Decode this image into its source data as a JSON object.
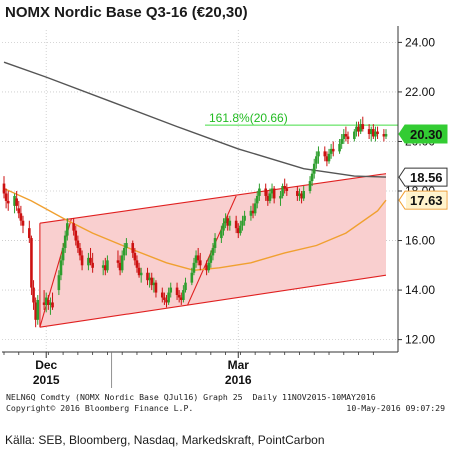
{
  "title": "NOMX Nordic Base Q3-16 (€20,30)",
  "footer": {
    "line1": "NELN6Q Comdty (NOMX Nordic Base QJul16) Graph 25  Daily 11NOV2015-10MAY2016",
    "line2_left": "Copyright© 2016 Bloomberg Finance L.P.",
    "line2_right": "10-May-2016 09:07:29"
  },
  "source": "Källa: SEB, Bloomberg, Nasdaq, Markedskraft, PointCarbon",
  "colors": {
    "up_candle": "#2e9e2e",
    "down_candle": "#cc1111",
    "channel": "#e02020",
    "channel_fill": "#f9cfcf",
    "ma_short": "#f0a030",
    "ma_long": "#555555",
    "fib_line": "#44dd44",
    "price_badge": "#33cc33"
  },
  "chart_data": {
    "type": "candlestick",
    "title": "NOMX Nordic Base Q3-16 (€20,30)",
    "x_range": [
      "2015-11-11",
      "2016-05-10"
    ],
    "y_range": [
      11.5,
      24.5
    ],
    "y_ticks": [
      "12.00",
      "14.00",
      "16.00",
      "18.00",
      "20.00",
      "22.00",
      "24.00"
    ],
    "x_tick_labels": [
      {
        "label": "Dec",
        "sub": "2015",
        "date": "2015-12-01"
      },
      {
        "label": "Mar",
        "sub": "2016",
        "date": "2016-03-01"
      }
    ],
    "value_labels": [
      {
        "name": "last",
        "value": "20.30",
        "y": 20.3,
        "style": "badge"
      },
      {
        "name": "ma_long_last",
        "value": "18.56",
        "y": 18.56,
        "style": "box-dark"
      },
      {
        "name": "ma_short_last",
        "value": "17.63",
        "y": 17.63,
        "style": "box-orange"
      }
    ],
    "fibonacci": {
      "label": "161.8%(20.66)",
      "value": 20.66
    },
    "channel": {
      "lower": [
        {
          "x": "2015-11-28",
          "y": 12.5
        },
        {
          "x": "2016-05-10",
          "y": 14.6
        }
      ],
      "upper": [
        {
          "x": "2015-11-28",
          "y": 16.7
        },
        {
          "x": "2016-05-10",
          "y": 18.7
        }
      ]
    },
    "trend_lines": [
      [
        {
          "x": "2015-11-28",
          "y": 12.5
        },
        {
          "x": "2015-12-13",
          "y": 16.9
        }
      ],
      [
        {
          "x": "2016-02-06",
          "y": 13.4
        },
        {
          "x": "2016-02-29",
          "y": 17.8
        }
      ]
    ],
    "ma_short": {
      "x": [
        "2015-11-11",
        "2015-11-24",
        "2015-12-09",
        "2015-12-23",
        "2016-01-09",
        "2016-01-27",
        "2016-02-09",
        "2016-02-21",
        "2016-03-07",
        "2016-03-23",
        "2016-04-07",
        "2016-04-21",
        "2016-05-06",
        "2016-05-10"
      ],
      "y": [
        18.1,
        17.6,
        16.9,
        16.3,
        15.7,
        15.1,
        14.8,
        14.9,
        15.1,
        15.5,
        15.8,
        16.3,
        17.2,
        17.63
      ]
    },
    "ma_long": {
      "x": [
        "2015-11-11",
        "2015-12-01",
        "2016-01-01",
        "2016-02-01",
        "2016-03-01",
        "2016-04-01",
        "2016-04-25",
        "2016-05-10"
      ],
      "y": [
        23.2,
        22.6,
        21.6,
        20.6,
        19.7,
        18.9,
        18.6,
        18.56
      ]
    },
    "candles": [
      {
        "d": "2015-11-11",
        "o": 18.3,
        "h": 18.6,
        "l": 17.7,
        "c": 17.9
      },
      {
        "d": "2015-11-12",
        "o": 17.9,
        "h": 18.1,
        "l": 17.3,
        "c": 17.6
      },
      {
        "d": "2015-11-13",
        "o": 17.6,
        "h": 18.0,
        "l": 17.2,
        "c": 17.5
      },
      {
        "d": "2015-11-16",
        "o": 17.4,
        "h": 17.9,
        "l": 17.1,
        "c": 17.8
      },
      {
        "d": "2015-11-17",
        "o": 17.7,
        "h": 18.0,
        "l": 17.2,
        "c": 17.4
      },
      {
        "d": "2015-11-18",
        "o": 17.3,
        "h": 17.6,
        "l": 16.9,
        "c": 17.1
      },
      {
        "d": "2015-11-19",
        "o": 17.1,
        "h": 17.4,
        "l": 16.6,
        "c": 16.8
      },
      {
        "d": "2015-11-20",
        "o": 16.8,
        "h": 17.0,
        "l": 16.3,
        "c": 16.6
      },
      {
        "d": "2015-11-23",
        "o": 16.5,
        "h": 16.8,
        "l": 15.9,
        "c": 16.1
      },
      {
        "d": "2015-11-24",
        "o": 16.1,
        "h": 16.2,
        "l": 13.8,
        "c": 14.1
      },
      {
        "d": "2015-11-25",
        "o": 14.1,
        "h": 14.4,
        "l": 13.2,
        "c": 13.5
      },
      {
        "d": "2015-11-26",
        "o": 13.5,
        "h": 13.7,
        "l": 12.5,
        "c": 12.8
      },
      {
        "d": "2015-11-27",
        "o": 12.8,
        "h": 13.8,
        "l": 12.6,
        "c": 13.6
      },
      {
        "d": "2015-11-30",
        "o": 13.5,
        "h": 14.0,
        "l": 13.2,
        "c": 13.4
      },
      {
        "d": "2015-12-01",
        "o": 13.4,
        "h": 13.9,
        "l": 13.1,
        "c": 13.7
      },
      {
        "d": "2015-12-02",
        "o": 13.6,
        "h": 13.8,
        "l": 13.2,
        "c": 13.4
      },
      {
        "d": "2015-12-03",
        "o": 13.4,
        "h": 13.7,
        "l": 13.0,
        "c": 13.5
      },
      {
        "d": "2015-12-04",
        "o": 13.5,
        "h": 13.9,
        "l": 13.2,
        "c": 13.3
      },
      {
        "d": "2015-12-07",
        "o": 14.0,
        "h": 14.8,
        "l": 13.8,
        "c": 14.6
      },
      {
        "d": "2015-12-08",
        "o": 14.6,
        "h": 15.4,
        "l": 14.4,
        "c": 15.2
      },
      {
        "d": "2015-12-09",
        "o": 15.2,
        "h": 15.9,
        "l": 15.0,
        "c": 15.7
      },
      {
        "d": "2015-12-10",
        "o": 15.7,
        "h": 16.4,
        "l": 15.5,
        "c": 16.2
      },
      {
        "d": "2015-12-11",
        "o": 16.2,
        "h": 16.9,
        "l": 16.0,
        "c": 16.7
      },
      {
        "d": "2015-12-14",
        "o": 16.7,
        "h": 16.9,
        "l": 16.2,
        "c": 16.4
      },
      {
        "d": "2015-12-15",
        "o": 16.4,
        "h": 16.6,
        "l": 15.8,
        "c": 16.0
      },
      {
        "d": "2015-12-16",
        "o": 16.0,
        "h": 16.2,
        "l": 15.5,
        "c": 15.7
      },
      {
        "d": "2015-12-17",
        "o": 15.7,
        "h": 15.9,
        "l": 15.2,
        "c": 15.4
      },
      {
        "d": "2015-12-18",
        "o": 15.4,
        "h": 15.6,
        "l": 14.8,
        "c": 15.0
      },
      {
        "d": "2015-12-21",
        "o": 15.0,
        "h": 15.5,
        "l": 14.8,
        "c": 15.3
      },
      {
        "d": "2015-12-22",
        "o": 15.3,
        "h": 15.7,
        "l": 15.0,
        "c": 15.1
      },
      {
        "d": "2015-12-23",
        "o": 15.1,
        "h": 15.5,
        "l": 14.7,
        "c": 14.9
      },
      {
        "d": "2015-12-28",
        "o": 14.9,
        "h": 15.2,
        "l": 14.6,
        "c": 15.0
      },
      {
        "d": "2015-12-29",
        "o": 15.0,
        "h": 15.3,
        "l": 14.6,
        "c": 14.8
      },
      {
        "d": "2015-12-30",
        "o": 14.8,
        "h": 15.4,
        "l": 14.7,
        "c": 15.2
      },
      {
        "d": "2016-01-04",
        "o": 15.2,
        "h": 15.6,
        "l": 14.9,
        "c": 15.1
      },
      {
        "d": "2016-01-05",
        "o": 15.1,
        "h": 15.4,
        "l": 14.6,
        "c": 14.8
      },
      {
        "d": "2016-01-06",
        "o": 14.8,
        "h": 15.6,
        "l": 14.7,
        "c": 15.4
      },
      {
        "d": "2016-01-07",
        "o": 15.4,
        "h": 15.9,
        "l": 15.2,
        "c": 15.7
      },
      {
        "d": "2016-01-08",
        "o": 15.7,
        "h": 16.1,
        "l": 15.4,
        "c": 15.9
      },
      {
        "d": "2016-01-11",
        "o": 15.9,
        "h": 16.0,
        "l": 15.3,
        "c": 15.5
      },
      {
        "d": "2016-01-12",
        "o": 15.5,
        "h": 15.7,
        "l": 15.0,
        "c": 15.2
      },
      {
        "d": "2016-01-13",
        "o": 15.2,
        "h": 15.4,
        "l": 14.7,
        "c": 14.9
      },
      {
        "d": "2016-01-14",
        "o": 14.9,
        "h": 15.1,
        "l": 14.5,
        "c": 14.6
      },
      {
        "d": "2016-01-15",
        "o": 14.6,
        "h": 14.9,
        "l": 14.3,
        "c": 14.7
      },
      {
        "d": "2016-01-18",
        "o": 14.7,
        "h": 14.9,
        "l": 14.2,
        "c": 14.4
      },
      {
        "d": "2016-01-19",
        "o": 14.4,
        "h": 14.7,
        "l": 14.1,
        "c": 14.5
      },
      {
        "d": "2016-01-20",
        "o": 14.5,
        "h": 14.7,
        "l": 14.0,
        "c": 14.2
      },
      {
        "d": "2016-01-21",
        "o": 14.2,
        "h": 14.5,
        "l": 13.9,
        "c": 14.3
      },
      {
        "d": "2016-01-22",
        "o": 14.3,
        "h": 14.4,
        "l": 13.7,
        "c": 13.9
      },
      {
        "d": "2016-01-25",
        "o": 13.9,
        "h": 14.1,
        "l": 13.5,
        "c": 13.7
      },
      {
        "d": "2016-01-26",
        "o": 13.7,
        "h": 13.9,
        "l": 13.4,
        "c": 13.6
      },
      {
        "d": "2016-01-27",
        "o": 13.6,
        "h": 13.8,
        "l": 13.3,
        "c": 13.5
      },
      {
        "d": "2016-01-28",
        "o": 13.5,
        "h": 14.1,
        "l": 13.4,
        "c": 13.9
      },
      {
        "d": "2016-01-29",
        "o": 13.9,
        "h": 14.3,
        "l": 13.7,
        "c": 14.1
      },
      {
        "d": "2016-02-01",
        "o": 14.1,
        "h": 14.3,
        "l": 13.6,
        "c": 13.8
      },
      {
        "d": "2016-02-02",
        "o": 13.8,
        "h": 14.0,
        "l": 13.5,
        "c": 13.7
      },
      {
        "d": "2016-02-03",
        "o": 13.7,
        "h": 13.9,
        "l": 13.4,
        "c": 13.6
      },
      {
        "d": "2016-02-04",
        "o": 13.6,
        "h": 14.2,
        "l": 13.5,
        "c": 14.0
      },
      {
        "d": "2016-02-05",
        "o": 14.0,
        "h": 14.5,
        "l": 13.9,
        "c": 14.3
      },
      {
        "d": "2016-02-08",
        "o": 14.3,
        "h": 14.9,
        "l": 14.2,
        "c": 14.7
      },
      {
        "d": "2016-02-09",
        "o": 14.7,
        "h": 15.3,
        "l": 14.6,
        "c": 15.1
      },
      {
        "d": "2016-02-10",
        "o": 15.1,
        "h": 15.6,
        "l": 14.9,
        "c": 15.4
      },
      {
        "d": "2016-02-11",
        "o": 15.4,
        "h": 15.7,
        "l": 15.0,
        "c": 15.2
      },
      {
        "d": "2016-02-12",
        "o": 15.2,
        "h": 15.5,
        "l": 14.8,
        "c": 15.0
      },
      {
        "d": "2016-02-15",
        "o": 15.0,
        "h": 15.2,
        "l": 14.6,
        "c": 14.8
      },
      {
        "d": "2016-02-16",
        "o": 14.8,
        "h": 15.3,
        "l": 14.7,
        "c": 15.1
      },
      {
        "d": "2016-02-17",
        "o": 15.1,
        "h": 15.6,
        "l": 14.9,
        "c": 15.4
      },
      {
        "d": "2016-02-18",
        "o": 15.4,
        "h": 15.9,
        "l": 15.2,
        "c": 15.7
      },
      {
        "d": "2016-02-19",
        "o": 15.7,
        "h": 16.3,
        "l": 15.5,
        "c": 16.1
      },
      {
        "d": "2016-02-22",
        "o": 16.1,
        "h": 16.6,
        "l": 15.9,
        "c": 16.4
      },
      {
        "d": "2016-02-23",
        "o": 16.4,
        "h": 16.9,
        "l": 16.2,
        "c": 16.7
      },
      {
        "d": "2016-02-24",
        "o": 16.7,
        "h": 17.1,
        "l": 16.5,
        "c": 16.9
      },
      {
        "d": "2016-02-25",
        "o": 16.9,
        "h": 17.0,
        "l": 16.4,
        "c": 16.6
      },
      {
        "d": "2016-02-26",
        "o": 16.6,
        "h": 17.0,
        "l": 16.4,
        "c": 16.8
      },
      {
        "d": "2016-02-29",
        "o": 16.8,
        "h": 17.0,
        "l": 16.3,
        "c": 16.5
      },
      {
        "d": "2016-03-01",
        "o": 16.5,
        "h": 16.7,
        "l": 16.1,
        "c": 16.3
      },
      {
        "d": "2016-03-02",
        "o": 16.3,
        "h": 16.8,
        "l": 16.2,
        "c": 16.6
      },
      {
        "d": "2016-03-03",
        "o": 16.6,
        "h": 17.0,
        "l": 16.4,
        "c": 16.8
      },
      {
        "d": "2016-03-04",
        "o": 16.8,
        "h": 17.2,
        "l": 16.6,
        "c": 17.0
      },
      {
        "d": "2016-03-07",
        "o": 17.0,
        "h": 17.4,
        "l": 16.8,
        "c": 17.2
      },
      {
        "d": "2016-03-08",
        "o": 17.2,
        "h": 17.5,
        "l": 16.9,
        "c": 17.1
      },
      {
        "d": "2016-03-09",
        "o": 17.1,
        "h": 17.7,
        "l": 17.0,
        "c": 17.5
      },
      {
        "d": "2016-03-10",
        "o": 17.5,
        "h": 18.0,
        "l": 17.3,
        "c": 17.8
      },
      {
        "d": "2016-03-11",
        "o": 17.8,
        "h": 18.3,
        "l": 17.6,
        "c": 18.1
      },
      {
        "d": "2016-03-14",
        "o": 18.1,
        "h": 18.3,
        "l": 17.6,
        "c": 17.8
      },
      {
        "d": "2016-03-15",
        "o": 17.8,
        "h": 18.0,
        "l": 17.4,
        "c": 17.6
      },
      {
        "d": "2016-03-16",
        "o": 17.6,
        "h": 18.1,
        "l": 17.5,
        "c": 17.9
      },
      {
        "d": "2016-03-17",
        "o": 17.9,
        "h": 18.3,
        "l": 17.7,
        "c": 18.1
      },
      {
        "d": "2016-03-18",
        "o": 18.1,
        "h": 18.2,
        "l": 17.5,
        "c": 17.7
      },
      {
        "d": "2016-03-21",
        "o": 17.7,
        "h": 18.0,
        "l": 17.4,
        "c": 17.8
      },
      {
        "d": "2016-03-22",
        "o": 17.8,
        "h": 18.3,
        "l": 17.7,
        "c": 18.2
      },
      {
        "d": "2016-03-23",
        "o": 18.2,
        "h": 18.5,
        "l": 17.9,
        "c": 18.1
      },
      {
        "d": "2016-03-24",
        "o": 18.1,
        "h": 18.3,
        "l": 17.8,
        "c": 18.0
      },
      {
        "d": "2016-03-29",
        "o": 18.0,
        "h": 18.2,
        "l": 17.6,
        "c": 17.8
      },
      {
        "d": "2016-03-30",
        "o": 17.8,
        "h": 18.1,
        "l": 17.6,
        "c": 17.9
      },
      {
        "d": "2016-03-31",
        "o": 17.9,
        "h": 18.0,
        "l": 17.5,
        "c": 17.7
      },
      {
        "d": "2016-04-01",
        "o": 17.7,
        "h": 18.2,
        "l": 17.6,
        "c": 18.0
      },
      {
        "d": "2016-04-04",
        "o": 18.0,
        "h": 18.6,
        "l": 17.9,
        "c": 18.4
      },
      {
        "d": "2016-04-05",
        "o": 18.4,
        "h": 18.9,
        "l": 18.2,
        "c": 18.7
      },
      {
        "d": "2016-04-06",
        "o": 18.7,
        "h": 19.3,
        "l": 18.5,
        "c": 19.1
      },
      {
        "d": "2016-04-07",
        "o": 19.1,
        "h": 19.6,
        "l": 18.9,
        "c": 19.4
      },
      {
        "d": "2016-04-08",
        "o": 19.4,
        "h": 19.8,
        "l": 19.1,
        "c": 19.6
      },
      {
        "d": "2016-04-11",
        "o": 19.6,
        "h": 19.8,
        "l": 19.2,
        "c": 19.4
      },
      {
        "d": "2016-04-12",
        "o": 19.4,
        "h": 19.6,
        "l": 19.0,
        "c": 19.2
      },
      {
        "d": "2016-04-13",
        "o": 19.2,
        "h": 19.7,
        "l": 19.1,
        "c": 19.5
      },
      {
        "d": "2016-04-14",
        "o": 19.5,
        "h": 19.9,
        "l": 19.3,
        "c": 19.7
      },
      {
        "d": "2016-04-15",
        "o": 19.7,
        "h": 20.0,
        "l": 19.4,
        "c": 19.6
      },
      {
        "d": "2016-04-18",
        "o": 19.6,
        "h": 20.1,
        "l": 19.5,
        "c": 19.9
      },
      {
        "d": "2016-04-19",
        "o": 19.9,
        "h": 20.3,
        "l": 19.7,
        "c": 20.1
      },
      {
        "d": "2016-04-20",
        "o": 20.1,
        "h": 20.5,
        "l": 19.9,
        "c": 20.3
      },
      {
        "d": "2016-04-21",
        "o": 20.3,
        "h": 20.6,
        "l": 20.0,
        "c": 20.2
      },
      {
        "d": "2016-04-22",
        "o": 20.2,
        "h": 20.4,
        "l": 19.9,
        "c": 20.1
      },
      {
        "d": "2016-04-25",
        "o": 20.1,
        "h": 20.5,
        "l": 20.0,
        "c": 20.4
      },
      {
        "d": "2016-04-26",
        "o": 20.4,
        "h": 20.8,
        "l": 20.2,
        "c": 20.6
      },
      {
        "d": "2016-04-27",
        "o": 20.6,
        "h": 20.8,
        "l": 20.2,
        "c": 20.4
      },
      {
        "d": "2016-04-28",
        "o": 20.4,
        "h": 20.9,
        "l": 20.3,
        "c": 20.7
      },
      {
        "d": "2016-04-29",
        "o": 20.7,
        "h": 21.0,
        "l": 20.4,
        "c": 20.5
      },
      {
        "d": "2016-05-02",
        "o": 20.5,
        "h": 20.7,
        "l": 20.1,
        "c": 20.3
      },
      {
        "d": "2016-05-03",
        "o": 20.3,
        "h": 20.6,
        "l": 20.0,
        "c": 20.5
      },
      {
        "d": "2016-05-04",
        "o": 20.5,
        "h": 20.7,
        "l": 20.1,
        "c": 20.2
      },
      {
        "d": "2016-05-05",
        "o": 20.2,
        "h": 20.6,
        "l": 20.0,
        "c": 20.4
      },
      {
        "d": "2016-05-06",
        "o": 20.4,
        "h": 20.6,
        "l": 20.1,
        "c": 20.3
      },
      {
        "d": "2016-05-09",
        "o": 20.3,
        "h": 20.5,
        "l": 20.0,
        "c": 20.2
      },
      {
        "d": "2016-05-10",
        "o": 20.2,
        "h": 20.5,
        "l": 20.1,
        "c": 20.3
      }
    ]
  }
}
